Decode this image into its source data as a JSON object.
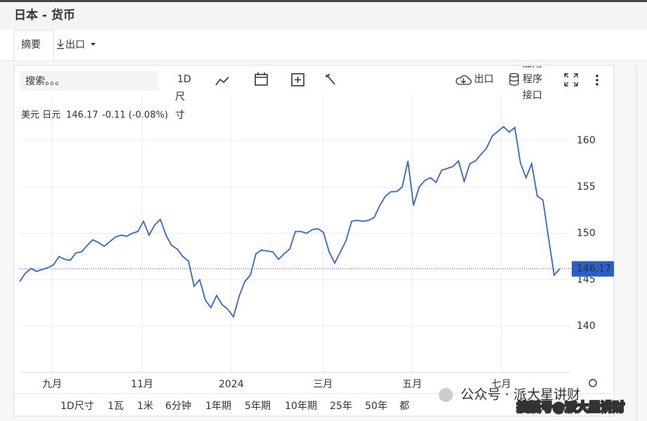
{
  "header": {
    "title": "日本 - 货币"
  },
  "tabs": [
    "摘要",
    "出口"
  ],
  "toolbar": {
    "search_placeholder": "搜索。。。",
    "interval": "1D",
    "interval_sub": [
      "尺",
      "寸"
    ],
    "export": "出口",
    "api": [
      "应用",
      "程序",
      "接口"
    ]
  },
  "legend": {
    "change": "-0.11 (-0.08%)"
  },
  "ranges": [
    "1D尺寸",
    "1瓦",
    "1米",
    "6分钟",
    "1年期",
    "5年期",
    "10年期",
    "25年",
    "50年",
    "都"
  ],
  "selected_range": 4,
  "watermarks": [
    "公众号 · 派大星讲财",
    "搜狐号@派大星讲财"
  ],
  "chart_data": {
    "type": "line",
    "series": [
      {
        "name": "美元 日元",
        "color": "#3366cc",
        "values": [
          144.8,
          145.7,
          146.2,
          145.9,
          146.1,
          146.3,
          146.6,
          147.5,
          147.2,
          147.1,
          147.9,
          148.0,
          148.7,
          149.3,
          149.0,
          148.6,
          149.1,
          149.6,
          149.8,
          149.7,
          150.0,
          150.2,
          151.3,
          149.8,
          150.9,
          151.5,
          149.8,
          148.7,
          148.3,
          147.5,
          147.0,
          144.3,
          145.0,
          142.8,
          142.0,
          143.3,
          142.3,
          141.8,
          141.0,
          143.2,
          144.8,
          145.5,
          147.8,
          148.2,
          148.1,
          148.0,
          147.2,
          147.8,
          148.3,
          150.2,
          150.2,
          150.0,
          150.4,
          150.5,
          150.1,
          148.0,
          146.8,
          148.0,
          149.2,
          151.3,
          151.4,
          151.3,
          151.4,
          151.7,
          153.0,
          154.0,
          154.5,
          154.5,
          155.0,
          157.8,
          153.0,
          155.0,
          155.7,
          156.0,
          155.5,
          156.8,
          157.0,
          157.2,
          157.8,
          155.6,
          157.5,
          157.8,
          158.5,
          159.2,
          160.5,
          161.0,
          161.5,
          160.9,
          161.4,
          157.6,
          156.0,
          157.5,
          154.0,
          153.6,
          149.5,
          145.5,
          146.17
        ]
      }
    ],
    "ylim": [
      135,
      165
    ],
    "yticks": [
      140,
      145,
      150,
      155,
      160
    ],
    "xlim": [
      0,
      98
    ],
    "xticks": [
      {
        "value": 5.75,
        "label": "九月"
      },
      {
        "value": 21.75,
        "label": "11月"
      },
      {
        "value": 37.6,
        "label": "2024"
      },
      {
        "value": 53.9,
        "label": "三月"
      },
      {
        "value": 69.75,
        "label": "五月"
      },
      {
        "value": 85.6,
        "label": "七月"
      }
    ],
    "grid": true
  }
}
